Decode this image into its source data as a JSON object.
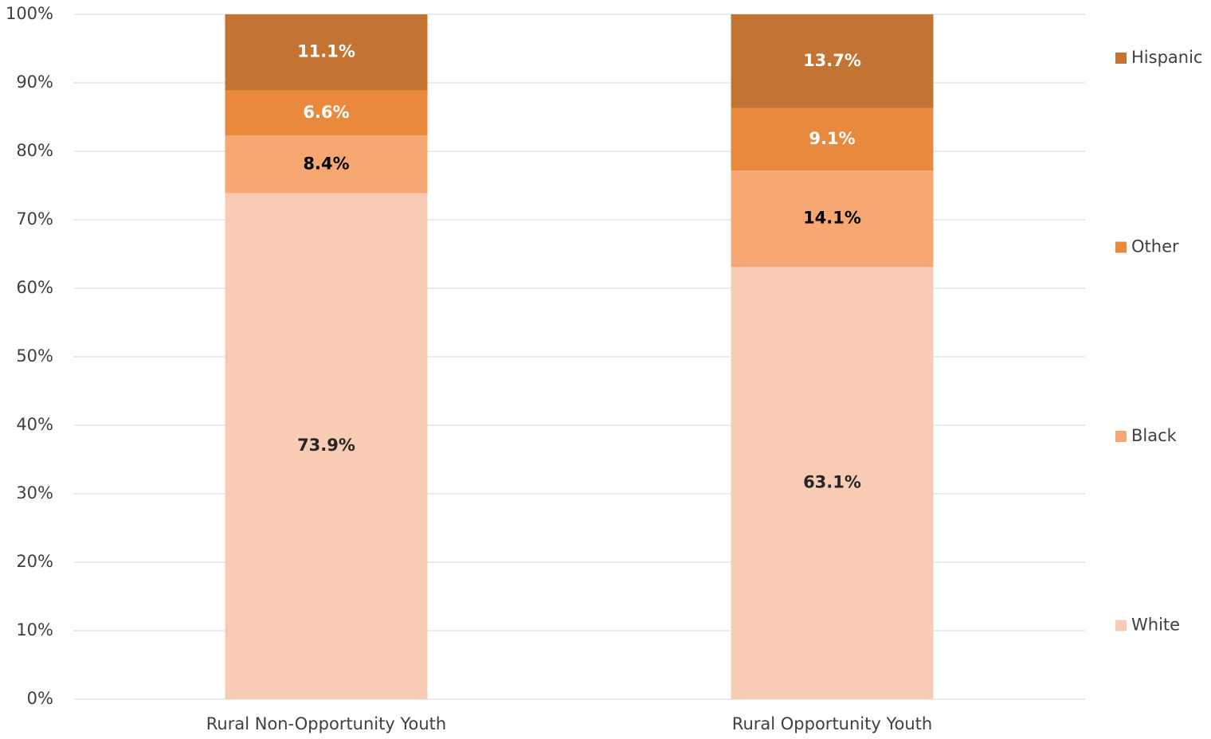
{
  "chart_data": {
    "type": "stacked_bar",
    "categories": [
      "Rural Non-Opportunity Youth",
      "Rural Opportunity Youth"
    ],
    "series": [
      {
        "name": "White",
        "color": "#f8cbb4",
        "label_color": "#262626",
        "values": [
          73.9,
          63.1
        ],
        "value_labels": [
          "73.9%",
          "63.1%"
        ]
      },
      {
        "name": "Black",
        "color": "#f7a872",
        "label_color": "#000000",
        "values": [
          8.4,
          14.1
        ],
        "value_labels": [
          "8.4%",
          "14.1%"
        ]
      },
      {
        "name": "Other",
        "color": "#e8893d",
        "label_color": "#ffffff",
        "values": [
          6.6,
          9.1
        ],
        "value_labels": [
          "6.6%",
          "9.1%"
        ]
      },
      {
        "name": "Hispanic",
        "color": "#c47432",
        "label_color": "#ffffff",
        "values": [
          11.1,
          13.7
        ],
        "value_labels": [
          "11.1%",
          "13.7%"
        ]
      }
    ],
    "ylim": [
      0,
      100
    ],
    "yticks": [
      {
        "value": 0,
        "label": "0%"
      },
      {
        "value": 10,
        "label": "10%"
      },
      {
        "value": 20,
        "label": "20%"
      },
      {
        "value": 30,
        "label": "30%"
      },
      {
        "value": 40,
        "label": "40%"
      },
      {
        "value": 50,
        "label": "50%"
      },
      {
        "value": 60,
        "label": "60%"
      },
      {
        "value": 70,
        "label": "70%"
      },
      {
        "value": 80,
        "label": "80%"
      },
      {
        "value": 90,
        "label": "90%"
      },
      {
        "value": 100,
        "label": "100%"
      }
    ],
    "grid": true,
    "legend": "right"
  }
}
